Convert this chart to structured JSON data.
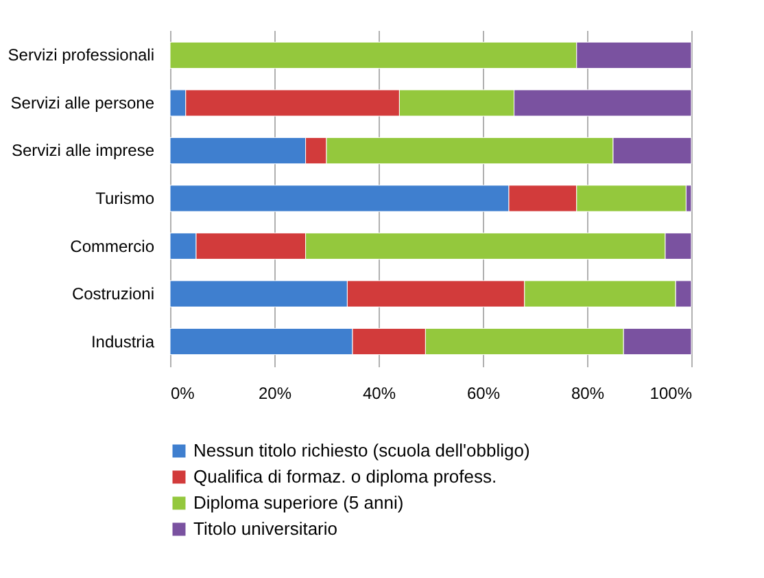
{
  "chart_data": {
    "type": "bar",
    "orientation": "horizontal",
    "stacked": true,
    "categories": [
      "Servizi professionali",
      "Servizi alle persone",
      "Servizi alle imprese",
      "Turismo",
      "Commercio",
      "Costruzioni",
      "Industria"
    ],
    "series": [
      {
        "name": "Nessun titolo richiesto (scuola dell'obbligo)",
        "color": "#3f7fcf",
        "values": [
          0,
          3,
          26,
          65,
          5,
          34,
          35
        ]
      },
      {
        "name": "Qualifica di formaz. o diploma profess.",
        "color": "#d23b3b",
        "values": [
          0,
          41,
          4,
          13,
          21,
          34,
          14
        ]
      },
      {
        "name": "Diploma superiore (5 anni)",
        "color": "#94c83d",
        "values": [
          78,
          22,
          55,
          21,
          69,
          29,
          38
        ]
      },
      {
        "name": "Titolo universitario",
        "color": "#7a52a0",
        "values": [
          22,
          34,
          15,
          1,
          5,
          3,
          13
        ]
      }
    ],
    "xlim": [
      0,
      100
    ],
    "xticks": [
      {
        "value": 0,
        "label": "0%"
      },
      {
        "value": 20,
        "label": "20%"
      },
      {
        "value": 40,
        "label": "40%"
      },
      {
        "value": 60,
        "label": "60%"
      },
      {
        "value": 80,
        "label": "80%"
      },
      {
        "value": 100,
        "label": "100%"
      }
    ],
    "grid": "x",
    "legend": "bottom"
  }
}
